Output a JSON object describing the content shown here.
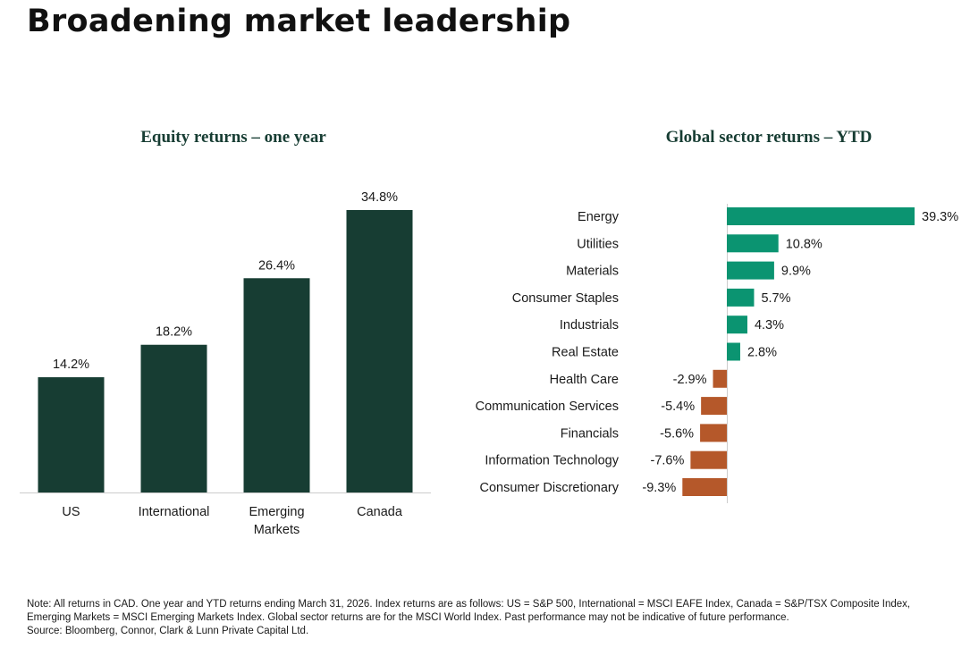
{
  "page": {
    "title": "Broadening market leadership"
  },
  "colors": {
    "dark_green": "#173d33",
    "teal": "#0b9471",
    "orange": "#b5582a",
    "axis": "#cccccc"
  },
  "chart_data": [
    {
      "type": "bar",
      "title": "Equity returns – one year",
      "categories": [
        [
          "US"
        ],
        [
          "International"
        ],
        [
          "Emerging",
          "Markets"
        ],
        [
          "Canada"
        ]
      ],
      "values": [
        14.2,
        18.2,
        26.4,
        34.8
      ],
      "value_labels": [
        "14.2%",
        "18.2%",
        "26.4%",
        "34.8%"
      ],
      "ylim": [
        0,
        34.8
      ]
    },
    {
      "type": "bar",
      "orientation": "horizontal",
      "title": "Global sector returns – YTD",
      "categories": [
        "Energy",
        "Utilities",
        "Materials",
        "Consumer Staples",
        "Industrials",
        "Real Estate",
        "Health Care",
        "Communication Services",
        "Financials",
        "Information Technology",
        "Consumer Discretionary"
      ],
      "values": [
        39.3,
        10.8,
        9.9,
        5.7,
        4.3,
        2.8,
        -2.9,
        -5.4,
        -5.6,
        -7.6,
        -9.3
      ],
      "value_labels": [
        "39.3%",
        "10.8%",
        "9.9%",
        "5.7%",
        "4.3%",
        "2.8%",
        "-2.9%",
        "-5.4%",
        "-5.6%",
        "-7.6%",
        "-9.3%"
      ]
    }
  ],
  "footnote": {
    "line1": "Note: All returns in CAD. One year and YTD returns ending March 31, 2026. Index returns are as follows: US = S&P 500, International = MSCI EAFE Index, Canada = S&P/TSX Composite Index,",
    "line2": "Emerging Markets = MSCI Emerging Markets Index. Global sector returns are for the MSCI World Index. Past performance may not be indicative of future performance.",
    "line3": "Source: Bloomberg, Connor, Clark & Lunn Private Capital Ltd."
  }
}
